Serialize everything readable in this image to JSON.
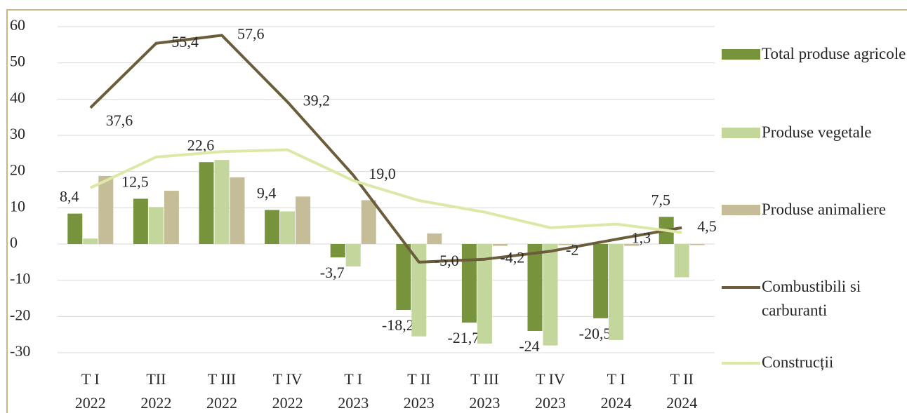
{
  "chart_data": {
    "type": "bar-line",
    "categories": [
      [
        "T I",
        "2022"
      ],
      [
        "TII",
        "2022"
      ],
      [
        "T III",
        "2022"
      ],
      [
        "T IV",
        "2022"
      ],
      [
        "T I",
        "2023"
      ],
      [
        "T II",
        "2023"
      ],
      [
        "T III",
        "2023"
      ],
      [
        "T IV",
        "2023"
      ],
      [
        "T I",
        "2024"
      ],
      [
        "T II",
        "2024"
      ]
    ],
    "series": [
      {
        "name": "Total produse agricole",
        "kind": "bar",
        "color": "#77933c",
        "values": [
          8.4,
          12.5,
          22.6,
          9.4,
          -3.7,
          -18.2,
          -21.7,
          -24,
          -20.5,
          7.5
        ],
        "value_labels": [
          "8,4",
          "12,5",
          "22,6",
          "9,4",
          "-3,7",
          "-18,2",
          "-21,7",
          "-24",
          "-20,5",
          "7,5"
        ]
      },
      {
        "name": "Produse vegetale",
        "kind": "bar",
        "color": "#c3d69b",
        "values": [
          1.5,
          10.2,
          23.2,
          9.0,
          -6.2,
          -25.5,
          -27.5,
          -28,
          -26.5,
          -9.2
        ]
      },
      {
        "name": "Produse animaliere",
        "kind": "bar",
        "color": "#c4bd97",
        "values": [
          18.8,
          14.7,
          18.4,
          13.1,
          12.1,
          2.9,
          -0.5,
          -0.3,
          -0.5,
          -0.3
        ]
      },
      {
        "name": "Combustibili si carburanti",
        "kind": "line",
        "color": "#6b5d3c",
        "values": [
          37.6,
          55.4,
          57.6,
          39.2,
          19.0,
          -5.0,
          -4.2,
          -2,
          1.3,
          4.5
        ],
        "value_labels": [
          "37,6",
          "55,4",
          "57,6",
          "39,2",
          "19,0",
          "-5,0",
          "-4,2",
          "-2",
          "1,3",
          "4,5"
        ]
      },
      {
        "name": "Construcții",
        "kind": "line",
        "color": "#dde8a6",
        "values": [
          15.5,
          24,
          25.5,
          26,
          17.5,
          12,
          8.8,
          4.5,
          5.5,
          3.2
        ]
      }
    ],
    "ylim": [
      -30,
      60
    ],
    "yticks": [
      -30,
      -20,
      -10,
      0,
      10,
      20,
      30,
      40,
      50,
      60
    ]
  }
}
